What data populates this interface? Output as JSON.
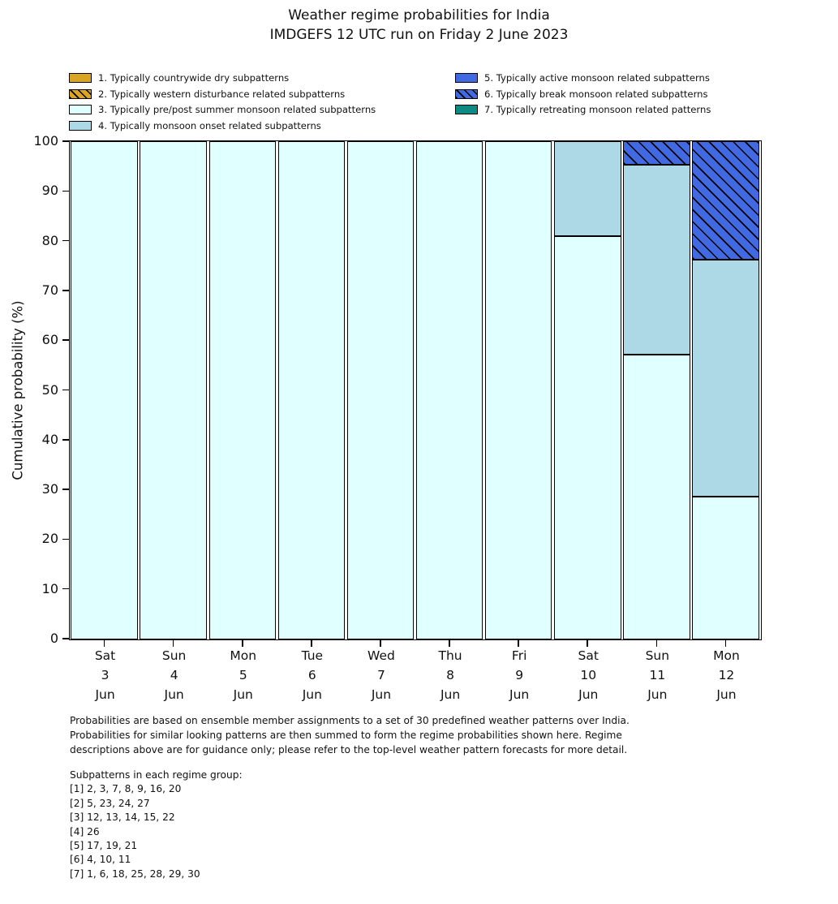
{
  "title": {
    "line1": "Weather regime probabilities for India",
    "line2": "IMDGEFS 12 UTC run on Friday 2 June 2023"
  },
  "chart_data": {
    "type": "bar",
    "stacked": true,
    "title": "Weather regime probabilities for India",
    "subtitle": "IMDGEFS 12 UTC run on Friday 2 June 2023",
    "xlabel": "",
    "ylabel": "Cumulative probability (%)",
    "ylim": [
      0,
      100
    ],
    "ytick_step": 10,
    "grid": false,
    "legend_position": "two columns above plot, upper left",
    "categories": [
      {
        "day": "Sat",
        "date": "3",
        "month": "Jun"
      },
      {
        "day": "Sun",
        "date": "4",
        "month": "Jun"
      },
      {
        "day": "Mon",
        "date": "5",
        "month": "Jun"
      },
      {
        "day": "Tue",
        "date": "6",
        "month": "Jun"
      },
      {
        "day": "Wed",
        "date": "7",
        "month": "Jun"
      },
      {
        "day": "Thu",
        "date": "8",
        "month": "Jun"
      },
      {
        "day": "Fri",
        "date": "9",
        "month": "Jun"
      },
      {
        "day": "Sat",
        "date": "10",
        "month": "Jun"
      },
      {
        "day": "Sun",
        "date": "11",
        "month": "Jun"
      },
      {
        "day": "Mon",
        "date": "12",
        "month": "Jun"
      }
    ],
    "series": [
      {
        "name": "1. Typically countrywide dry subpatterns",
        "color": "#DAA520",
        "hatch": false,
        "values": [
          0,
          0,
          0,
          0,
          0,
          0,
          0,
          0,
          0,
          0
        ]
      },
      {
        "name": "2. Typically western disturbance related subpatterns",
        "color": "#DAA520",
        "hatch": true,
        "values": [
          0,
          0,
          0,
          0,
          0,
          0,
          0,
          0,
          0,
          0
        ]
      },
      {
        "name": "3. Typically pre/post summer monsoon related subpatterns",
        "color": "#E0FFFF",
        "hatch": false,
        "values": [
          100,
          100,
          100,
          100,
          100,
          100,
          100,
          81.0,
          57.1,
          28.6
        ]
      },
      {
        "name": "4. Typically monsoon onset related subpatterns",
        "color": "#ADD8E6",
        "hatch": false,
        "values": [
          0,
          0,
          0,
          0,
          0,
          0,
          0,
          19.0,
          38.1,
          47.6
        ]
      },
      {
        "name": "5. Typically active monsoon related subpatterns",
        "color": "#4169E1",
        "hatch": false,
        "values": [
          0,
          0,
          0,
          0,
          0,
          0,
          0,
          0,
          0,
          0
        ]
      },
      {
        "name": "6. Typically break monsoon related subpatterns",
        "color": "#4169E1",
        "hatch": true,
        "values": [
          0,
          0,
          0,
          0,
          0,
          0,
          0,
          0,
          4.8,
          23.8
        ]
      },
      {
        "name": "7. Typically retreating monsoon related patterns",
        "color": "#0E8A82",
        "hatch": false,
        "values": [
          0,
          0,
          0,
          0,
          0,
          0,
          0,
          0,
          0,
          0
        ]
      }
    ],
    "legend_columns": [
      [
        0,
        1,
        2,
        3
      ],
      [
        4,
        5,
        6
      ]
    ]
  },
  "footer": {
    "paragraph_lines": [
      "Probabilities are based on ensemble member assignments to a set of 30 predefined weather patterns over India.",
      "Probabilities for similar looking patterns are then summed to form the regime probabilities shown here. Regime",
      "descriptions above are for guidance only; please refer to the top-level weather pattern forecasts for more detail."
    ],
    "subpatterns_heading": "Subpatterns in each regime group:",
    "subpattern_lines": [
      "[1] 2, 3, 7, 8, 9, 16, 20",
      "[2] 5, 23, 24, 27",
      "[3] 12, 13, 14, 15, 22",
      "[4] 26",
      "[5] 17, 19, 21",
      "[6] 4, 10, 11",
      "[7] 1, 6, 18, 25, 28, 29, 30"
    ]
  }
}
